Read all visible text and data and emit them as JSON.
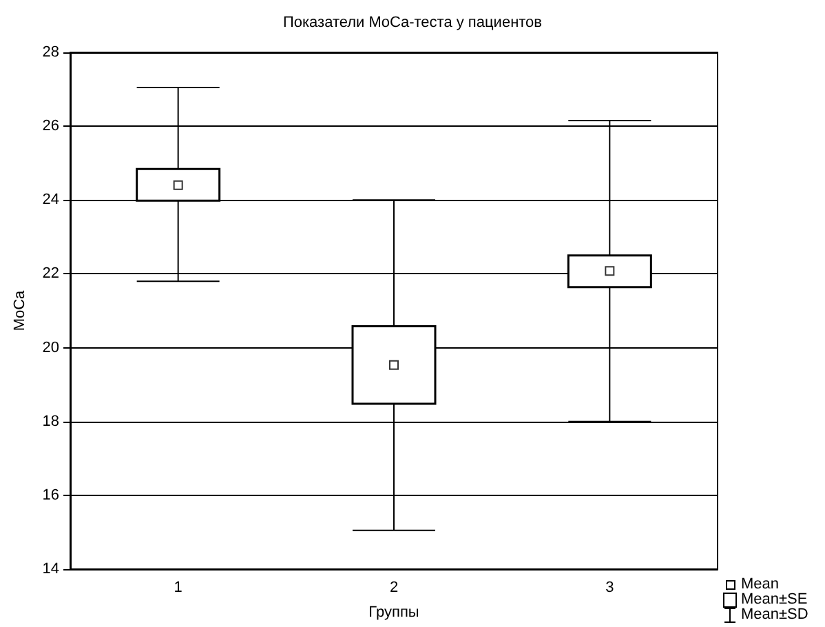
{
  "chart_data": {
    "type": "box",
    "title": "Показатели MoCa-теста у пациентов",
    "xlabel": "Группы",
    "ylabel": "MoCa",
    "categories": [
      "1",
      "2",
      "3"
    ],
    "boxes": [
      {
        "low": 21.8,
        "q1": 23.98,
        "q3": 24.84,
        "high": 27.05,
        "mean": 24.4
      },
      {
        "low": 15.05,
        "q1": 18.48,
        "q3": 20.58,
        "high": 24.0,
        "mean": 19.53
      },
      {
        "low": 18.0,
        "q1": 21.64,
        "q3": 22.5,
        "high": 26.15,
        "mean": 22.08
      }
    ],
    "ylim": [
      14,
      28
    ],
    "yticks": [
      14,
      16,
      18,
      20,
      22,
      24,
      26,
      28
    ],
    "grid": "y",
    "annotations": [
      "Mean",
      "Mean±SE",
      "Mean±SD"
    ]
  }
}
